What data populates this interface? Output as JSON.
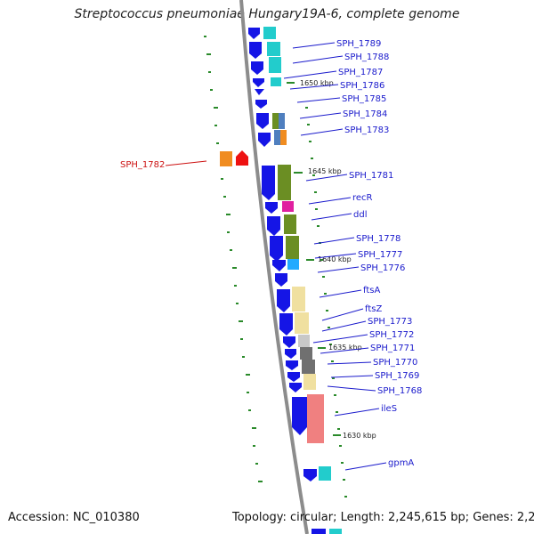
{
  "title": "Streptococcus pneumoniae Hungary19A-6, complete genome",
  "footer": {
    "accession": "Accession: NC_010380",
    "summary": "Topology: circular; Length: 2,245,615 bp; Genes: 2,222"
  },
  "colors": {
    "backbone": "#8c8c8c",
    "gene_forward": "#1515e6",
    "label_link": "#1a1acc",
    "label_highlight": "#cc1111",
    "gc_tick": "#2a8a2a"
  },
  "ticks": [
    {
      "label": "1650 kbp"
    },
    {
      "label": "1645 kbp"
    },
    {
      "label": "1640 kbp"
    },
    {
      "label": "1635 kbp"
    },
    {
      "label": "1630 kbp"
    }
  ],
  "genes": [
    {
      "label": "SPH_1789",
      "color": "#2f6fd6"
    },
    {
      "label": "SPH_1788",
      "color": "#2f6fd6"
    },
    {
      "label": "SPH_1787",
      "color": "#2f6fd6"
    },
    {
      "label": "SPH_1786",
      "color": "#2f6fd6"
    },
    {
      "label": "SPH_1785",
      "color": "#2f6fd6"
    },
    {
      "label": "SPH_1784",
      "color": "#2f6fd6"
    },
    {
      "label": "SPH_1783",
      "color": "#2f6fd6"
    },
    {
      "label": "SPH_1782",
      "color": "#cc1111"
    },
    {
      "label": "SPH_1781",
      "color": "#2f6fd6"
    },
    {
      "label": "recR",
      "color": "#2f6fd6"
    },
    {
      "label": "ddl",
      "color": "#2f6fd6"
    },
    {
      "label": "SPH_1778",
      "color": "#2f6fd6"
    },
    {
      "label": "SPH_1777",
      "color": "#2f6fd6"
    },
    {
      "label": "SPH_1776",
      "color": "#2f6fd6"
    },
    {
      "label": "ftsA",
      "color": "#2f6fd6"
    },
    {
      "label": "ftsZ",
      "color": "#2f6fd6"
    },
    {
      "label": "SPH_1773",
      "color": "#2f6fd6"
    },
    {
      "label": "SPH_1772",
      "color": "#2f6fd6"
    },
    {
      "label": "SPH_1771",
      "color": "#2f6fd6"
    },
    {
      "label": "SPH_1770",
      "color": "#2f6fd6"
    },
    {
      "label": "SPH_1769",
      "color": "#2f6fd6"
    },
    {
      "label": "SPH_1768",
      "color": "#2f6fd6"
    },
    {
      "label": "ileS",
      "color": "#2f6fd6"
    },
    {
      "label": "gpmA",
      "color": "#2f6fd6"
    }
  ]
}
